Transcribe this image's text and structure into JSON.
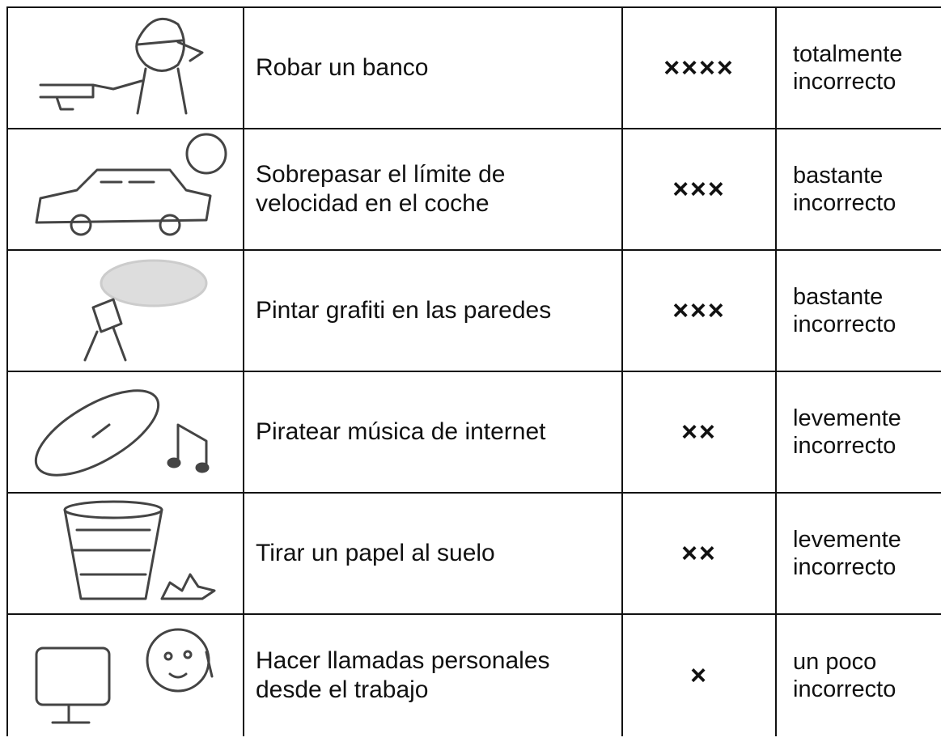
{
  "table": {
    "rows": [
      [
        "Robar un banco",
        "××××",
        "totalmente\nincorrecto"
      ],
      [
        "Sobrepasar el límite de\nvelocidad en el coche",
        "×××",
        "bastante\nincorrecto"
      ],
      [
        "Pintar grafiti en las paredes",
        "×××",
        "bastante\nincorrecto"
      ],
      [
        "Piratear música de internet",
        "××",
        "levemente\nincorrecto"
      ],
      [
        "Tirar un papel al suelo",
        "××",
        "levemente\nincorrecto"
      ],
      [
        "Hacer llamadas personales\ndesde el trabajo",
        "×",
        "un poco\nincorrecto"
      ]
    ]
  }
}
